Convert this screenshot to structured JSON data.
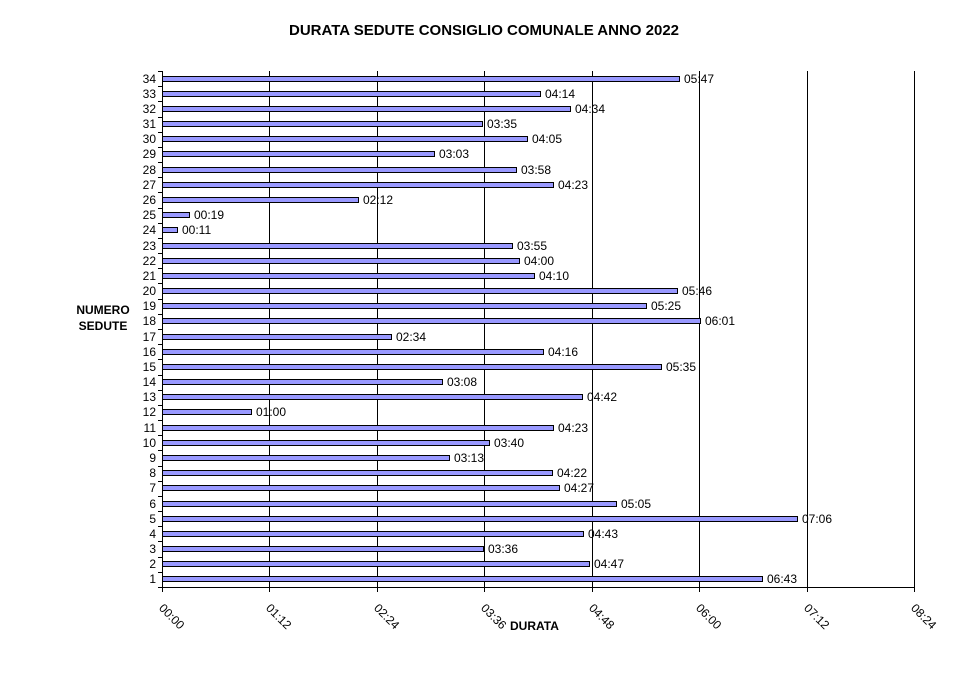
{
  "chart_data": {
    "type": "bar",
    "orientation": "horizontal",
    "title": "DURATA SEDUTE CONSIGLIO COMUNALE ANNO 2022",
    "xlabel": "DURATA",
    "ylabel": "NUMERO SEDUTE",
    "xlim": [
      "00:00",
      "08:24"
    ],
    "xlim_minutes": [
      0,
      504
    ],
    "x_ticks": [
      "00:00",
      "01:12",
      "02:24",
      "03:36",
      "04:48",
      "06:00",
      "07:12",
      "08:24"
    ],
    "grid": "vertical major gridlines",
    "legend": "none",
    "bar_color": "#9999ff",
    "categories": [
      "1",
      "2",
      "3",
      "4",
      "5",
      "6",
      "7",
      "8",
      "9",
      "10",
      "11",
      "12",
      "13",
      "14",
      "15",
      "16",
      "17",
      "18",
      "19",
      "20",
      "21",
      "22",
      "23",
      "24",
      "25",
      "26",
      "27",
      "28",
      "29",
      "30",
      "31",
      "32",
      "33",
      "34"
    ],
    "labels": [
      "06:43",
      "04:47",
      "03:36",
      "04:43",
      "07:06",
      "05:05",
      "04:27",
      "04:22",
      "03:13",
      "03:40",
      "04:23",
      "01:00",
      "04:42",
      "03:08",
      "05:35",
      "04:16",
      "02:34",
      "06:01",
      "05:25",
      "05:46",
      "04:10",
      "04:00",
      "03:55",
      "00:11",
      "00:19",
      "02:12",
      "04:23",
      "03:58",
      "03:03",
      "04:05",
      "03:35",
      "04:34",
      "04:14",
      "05:47"
    ],
    "values_minutes": [
      403,
      287,
      216,
      283,
      426,
      305,
      267,
      262,
      193,
      220,
      263,
      60,
      282,
      188,
      335,
      256,
      154,
      361,
      325,
      346,
      250,
      240,
      235,
      11,
      19,
      132,
      263,
      238,
      183,
      245,
      215,
      274,
      254,
      347
    ]
  }
}
